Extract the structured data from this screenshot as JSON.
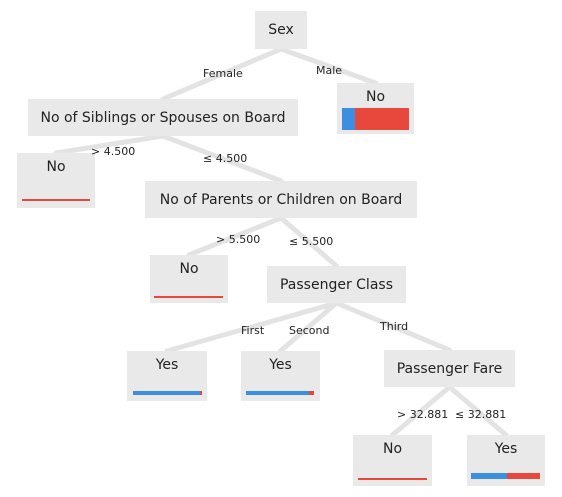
{
  "colors": {
    "node_fill": "#e9e9e9",
    "edge": "#e3e3e3",
    "yes": "#3c8ee0",
    "no": "#e8473b"
  },
  "nodes": {
    "sex": {
      "label": "Sex"
    },
    "siblings": {
      "label": "No of Siblings or Spouses on Board"
    },
    "parents": {
      "label": "No of Parents or Children on Board"
    },
    "pclass": {
      "label": "Passenger Class"
    },
    "fare": {
      "label": "Passenger Fare"
    },
    "leaf_male": {
      "label": "No",
      "yes_fraction": 0.19
    },
    "leaf_sib_gt": {
      "label": "No",
      "yes_fraction": 0.0
    },
    "leaf_par_gt": {
      "label": "No",
      "yes_fraction": 0.0
    },
    "leaf_first": {
      "label": "Yes",
      "yes_fraction": 0.97
    },
    "leaf_second": {
      "label": "Yes",
      "yes_fraction": 0.92
    },
    "leaf_fare_gt": {
      "label": "No",
      "yes_fraction": 0.0
    },
    "leaf_fare_le": {
      "label": "Yes",
      "yes_fraction": 0.52
    }
  },
  "edges": {
    "female": "Female",
    "male": "Male",
    "sib_gt": "> 4.500",
    "sib_le": "≤ 4.500",
    "par_gt": "> 5.500",
    "par_le": "≤ 5.500",
    "first": "First",
    "second": "Second",
    "third": "Third",
    "fare_gt": "> 32.881",
    "fare_le": "≤ 32.881"
  }
}
